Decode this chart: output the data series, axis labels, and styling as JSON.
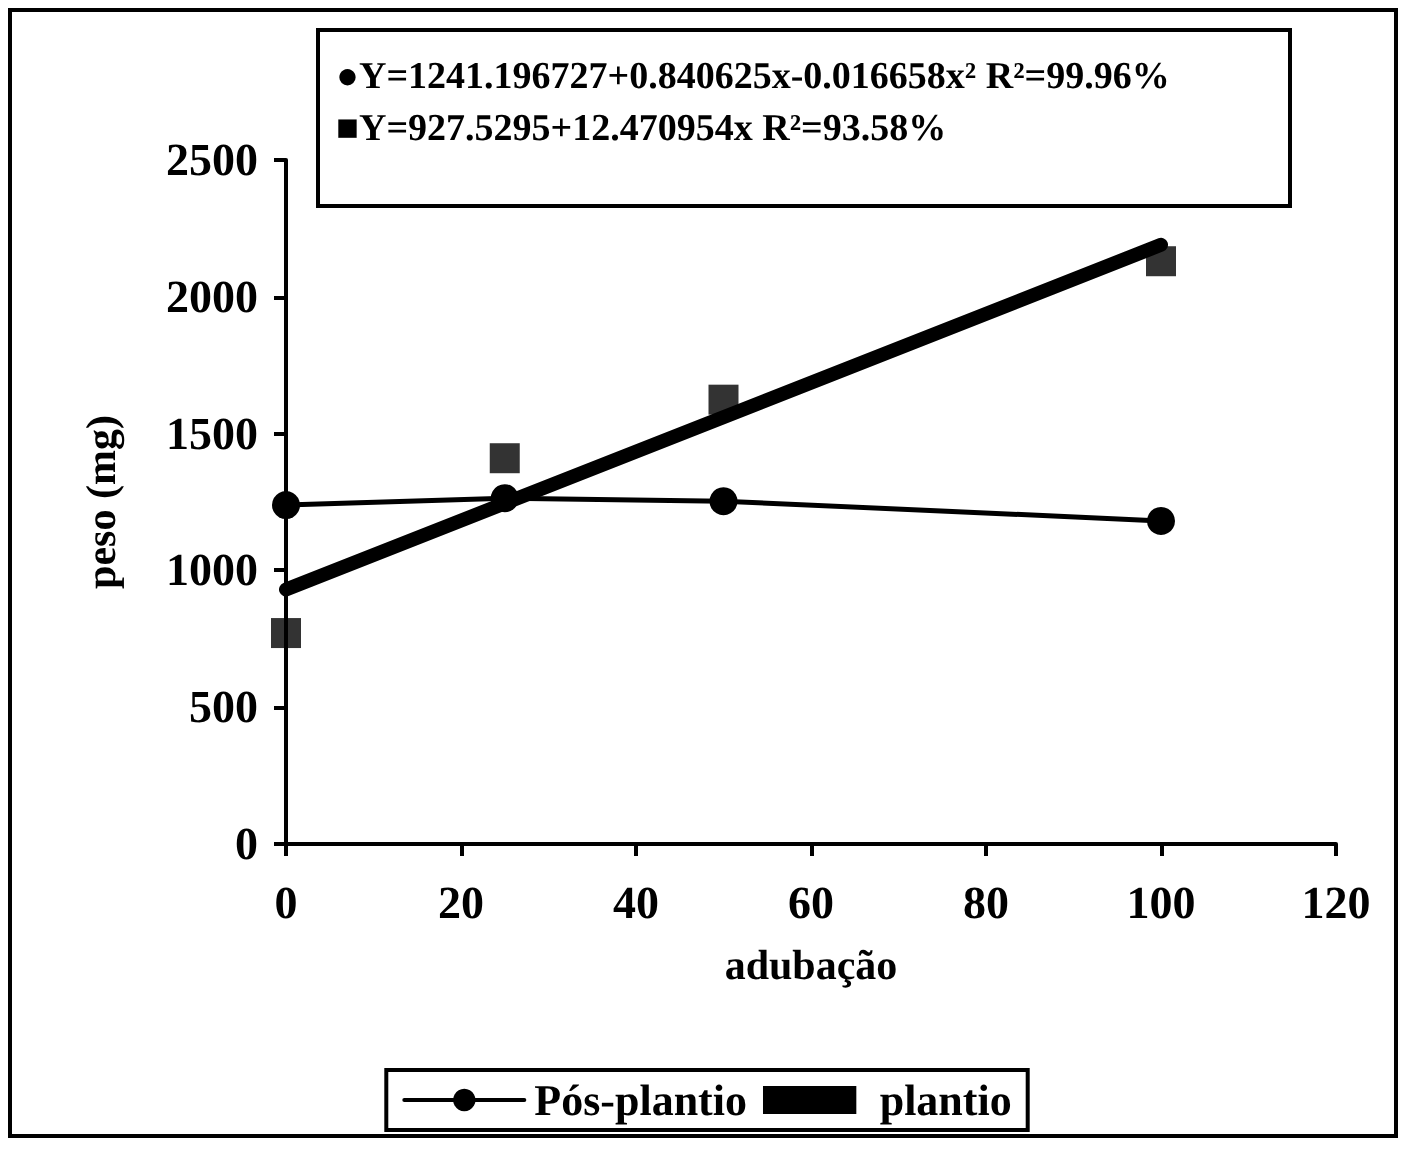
{
  "chart_data": {
    "type": "line",
    "xlabel": "adubação",
    "ylabel": "peso (mg)",
    "xlim": [
      0,
      120
    ],
    "xticks": [
      0,
      20,
      40,
      60,
      80,
      100,
      120
    ],
    "ylim": [
      0,
      2500
    ],
    "yticks": [
      0,
      500,
      1000,
      1500,
      2000,
      2500
    ],
    "grid": false,
    "legend": "bottom",
    "line_style": "solid",
    "annotations": [
      "●Y=1241.196727+0.840625x-0.016658x² R²=99.96%",
      "■Y=927.5295+12.470954x R²=93.58%"
    ],
    "series": [
      {
        "name": "Pós-plantio",
        "marker": "circle",
        "color": "#000000",
        "x": [
          0,
          25,
          50,
          100
        ],
        "values": [
          1239,
          1264,
          1253,
          1181
        ]
      },
      {
        "type": "scatter",
        "marker": "square",
        "color": "#000000",
        "x": [
          0,
          25,
          50,
          100
        ],
        "values": [
          771,
          1410,
          1624,
          2130
        ]
      },
      {
        "name": "plantio",
        "marker": "none",
        "color": "#000000",
        "x": [
          0,
          100
        ],
        "values": [
          930,
          2190
        ]
      }
    ]
  }
}
